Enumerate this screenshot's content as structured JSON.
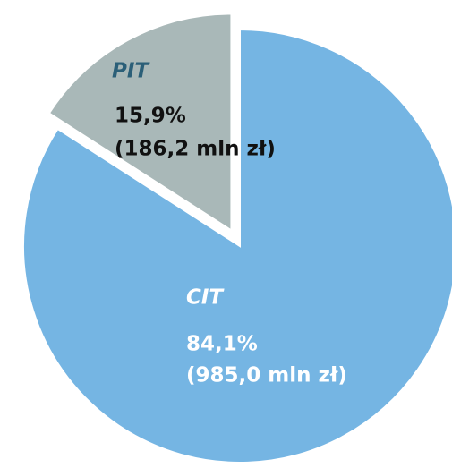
{
  "chart_data": {
    "type": "pie",
    "categories": [
      "CIT",
      "PIT"
    ],
    "values": [
      84.1,
      15.9
    ],
    "value_labels": [
      "84,1%",
      "15,9%"
    ],
    "amounts": [
      985.0,
      186.2
    ],
    "amount_labels": [
      "(985,0 mln zł)",
      "(186,2 mln zł)"
    ],
    "colors": [
      "#75b5e3",
      "#a9b8b8"
    ],
    "exploded": [
      false,
      true
    ]
  }
}
